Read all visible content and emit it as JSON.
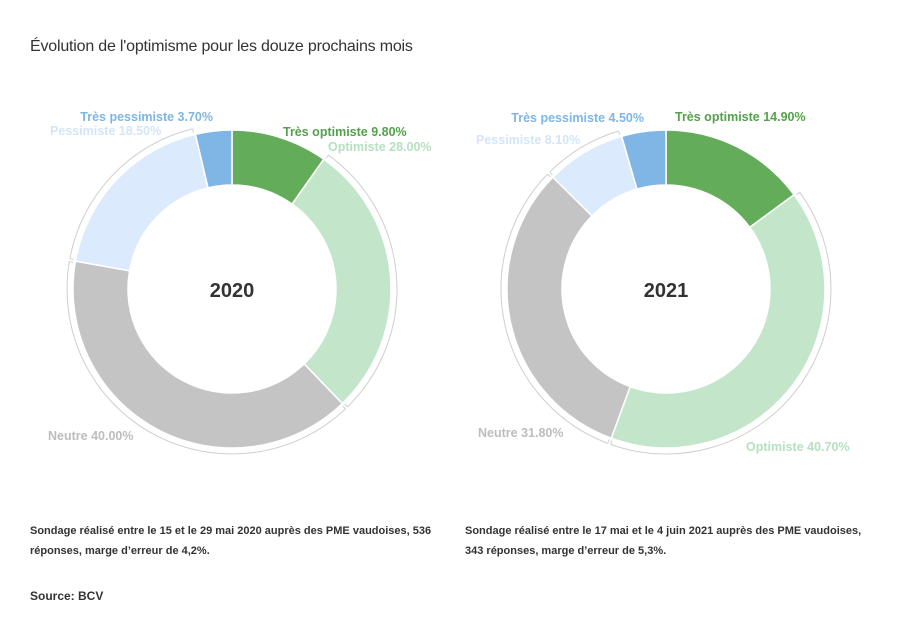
{
  "title": "Évolution de l'optimisme pour les douze prochains mois",
  "colors": {
    "tres_pessimiste": "#7fb6e5",
    "pessimiste": "#dbeafc",
    "neutre": "#c4c4c4",
    "optimiste": "#c3e6cb",
    "tres_optimiste": "#63ad5a"
  },
  "label_colors": {
    "tres_pessimiste": "#7fb6e5",
    "pessimiste": "#d3e5f7",
    "neutre": "#bdbdbd",
    "optimiste": "#b5e1bf",
    "tres_optimiste": "#53a24a"
  },
  "chart_data": [
    {
      "type": "pie",
      "variant": "donut",
      "center_label": "2020",
      "slices": [
        {
          "key": "tres_optimiste",
          "name": "Très optimiste",
          "value": 9.8,
          "label": "Très optimiste 9.80%"
        },
        {
          "key": "optimiste",
          "name": "Optimiste",
          "value": 28.0,
          "label": "Optimiste 28.00%"
        },
        {
          "key": "neutre",
          "name": "Neutre",
          "value": 40.0,
          "label": "Neutre 40.00%"
        },
        {
          "key": "pessimiste",
          "name": "Pessimiste",
          "value": 18.5,
          "label": "Pessimiste 18.50%"
        },
        {
          "key": "tres_pessimiste",
          "name": "Très pessimiste",
          "value": 3.7,
          "label": "Très pessimiste 3.70%"
        }
      ]
    },
    {
      "type": "pie",
      "variant": "donut",
      "center_label": "2021",
      "slices": [
        {
          "key": "tres_optimiste",
          "name": "Très optimiste",
          "value": 14.9,
          "label": "Très optimiste 14.90%"
        },
        {
          "key": "optimiste",
          "name": "Optimiste",
          "value": 40.7,
          "label": "Optimiste 40.70%"
        },
        {
          "key": "neutre",
          "name": "Neutre",
          "value": 31.8,
          "label": "Neutre 31.80%"
        },
        {
          "key": "pessimiste",
          "name": "Pessimiste",
          "value": 8.1,
          "label": "Pessimiste 8.10%"
        },
        {
          "key": "tres_pessimiste",
          "name": "Très pessimiste",
          "value": 4.5,
          "label": "Très pessimiste 4.50%"
        }
      ]
    }
  ],
  "notes": [
    "Sondage réalisé entre le 15 et le 29 mai 2020 auprès des PME vaudoises, 536 réponses, marge d’erreur de 4,2%.",
    "Sondage réalisé entre le 17 mai et le 4 juin 2021 auprès des PME vaudoises, 343 réponses, marge d’erreur de 5,3%."
  ],
  "source": "Source: BCV"
}
